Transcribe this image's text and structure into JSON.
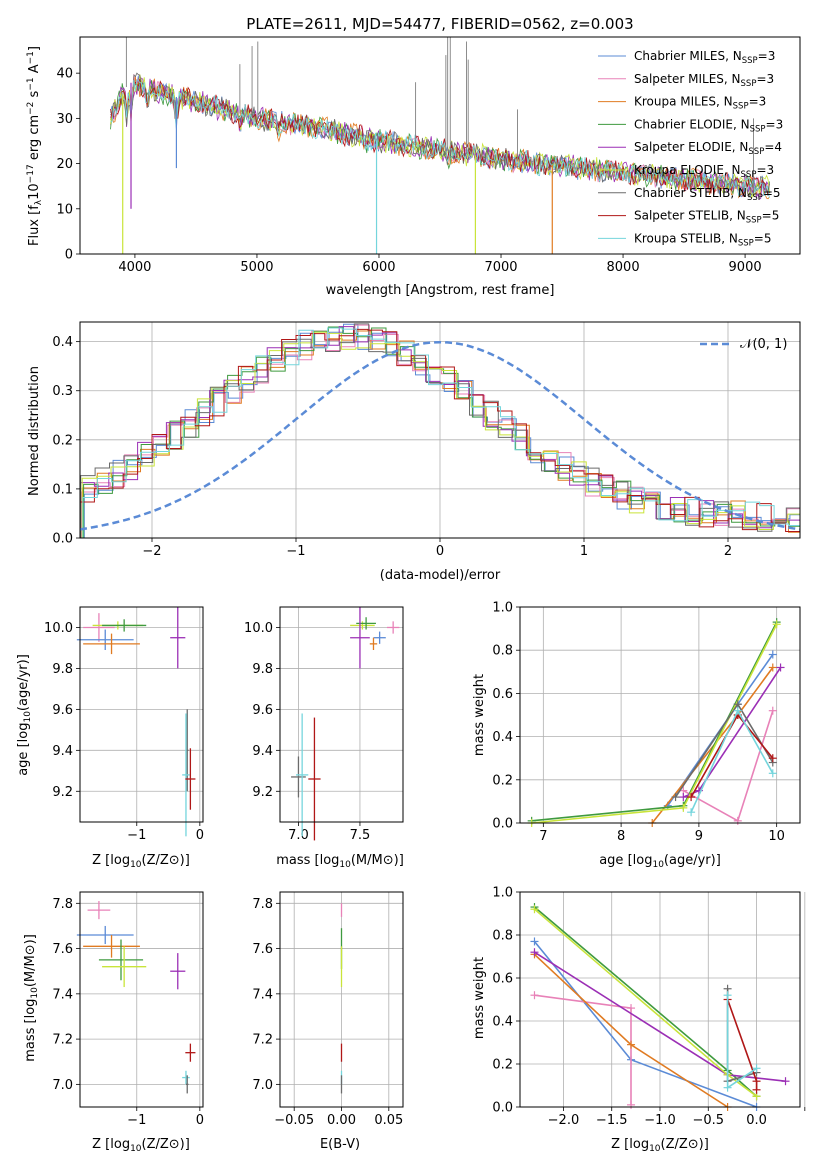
{
  "colors": {
    "Chabrier MILES": "#5b8bd6",
    "Salpeter MILES": "#e882b8",
    "Kroupa MILES": "#e07b22",
    "Chabrier ELODIE": "#3f9a3f",
    "Salpeter ELODIE": "#9b2fb5",
    "Kroupa ELODIE": "#c9e43a",
    "Chabrier STELIB": "#6b6b6b",
    "Salpeter STELIB": "#b01717",
    "Kroupa STELIB": "#74d5dc",
    "normal": "#5b8bd6"
  },
  "chart_data": [
    {
      "type": "line",
      "title": "PLATE=2611, MJD=54477, FIBERID=0562, z=0.003",
      "xlabel": "wavelength [Angstrom, rest frame]",
      "ylabel": "Flux [f_λ10^{-17} erg cm^{-2} s^{-1} A^{-1}]",
      "xlim": [
        3550,
        9450
      ],
      "ylim": [
        0,
        48
      ],
      "xticks": [
        "4000",
        "5000",
        "6000",
        "7000",
        "8000",
        "9000"
      ],
      "yticks": [
        "0",
        "10",
        "20",
        "30",
        "40"
      ],
      "legend_position": "top-right",
      "series": [
        {
          "name": "Chabrier MILES",
          "label_main": "Chabrier MILES, N",
          "label_sub": "SSP",
          "label_tail": "=3"
        },
        {
          "name": "Salpeter MILES",
          "label_main": "Salpeter MILES, N",
          "label_sub": "SSP",
          "label_tail": "=3"
        },
        {
          "name": "Kroupa MILES",
          "label_main": "Kroupa MILES, N",
          "label_sub": "SSP",
          "label_tail": "=3"
        },
        {
          "name": "Chabrier ELODIE",
          "label_main": "Chabrier ELODIE, N",
          "label_sub": "SSP",
          "label_tail": "=3"
        },
        {
          "name": "Salpeter ELODIE",
          "label_main": "Salpeter ELODIE, N",
          "label_sub": "SSP",
          "label_tail": "=4"
        },
        {
          "name": "Kroupa ELODIE",
          "label_main": "Kroupa ELODIE, N",
          "label_sub": "SSP",
          "label_tail": "=3"
        },
        {
          "name": "Chabrier STELIB",
          "label_main": "Chabrier STELIB, N",
          "label_sub": "SSP",
          "label_tail": "=5"
        },
        {
          "name": "Salpeter STELIB",
          "label_main": "Salpeter STELIB, N",
          "label_sub": "SSP",
          "label_tail": "=5"
        },
        {
          "name": "Kroupa STELIB",
          "label_main": "Kroupa STELIB, N",
          "label_sub": "SSP",
          "label_tail": "=5"
        }
      ],
      "continuum": {
        "x": [
          3800,
          3950,
          4100,
          4300,
          4600,
          5000,
          5500,
          6000,
          6500,
          7000,
          7500,
          8000,
          8500,
          9000,
          9200
        ],
        "y": [
          30,
          38,
          37,
          35,
          33,
          30,
          28,
          25,
          23,
          21,
          19.5,
          18,
          16.5,
          15,
          14.5
        ]
      },
      "spikes": [
        {
          "x": 3900,
          "y": 0,
          "series": "Kroupa ELODIE"
        },
        {
          "x": 3968,
          "y": 10,
          "series": "Salpeter ELODIE"
        },
        {
          "x": 4340,
          "y": 19,
          "series": "Chabrier MILES"
        },
        {
          "x": 5980,
          "y": 0,
          "series": "Kroupa STELIB"
        },
        {
          "x": 6790,
          "y": 0,
          "series": "Kroupa ELODIE"
        },
        {
          "x": 7420,
          "y": 0,
          "series": "Kroupa MILES"
        }
      ],
      "emission": [
        {
          "x": 3930,
          "y": 48
        },
        {
          "x": 4860,
          "y": 42
        },
        {
          "x": 4960,
          "y": 46
        },
        {
          "x": 5007,
          "y": 47
        },
        {
          "x": 6300,
          "y": 38
        },
        {
          "x": 6548,
          "y": 44
        },
        {
          "x": 6563,
          "y": 48
        },
        {
          "x": 6584,
          "y": 48
        },
        {
          "x": 6717,
          "y": 47
        },
        {
          "x": 6731,
          "y": 43
        },
        {
          "x": 7135,
          "y": 32
        },
        {
          "x": 9069,
          "y": 30
        }
      ]
    },
    {
      "type": "line",
      "xlabel": "(data-model)/error",
      "ylabel": "Normed distribution",
      "xlim": [
        -2.5,
        2.5
      ],
      "ylim": [
        0,
        0.44
      ],
      "xticks": [
        "−2",
        "−1",
        "0",
        "1",
        "2"
      ],
      "yticks": [
        "0.0",
        "0.1",
        "0.2",
        "0.3",
        "0.4"
      ],
      "legend_label": "𝒩(0, 1)",
      "legend_position": "top-right",
      "bin_width": 0.1,
      "bins_start": -2.5,
      "base_values": [
        0.14,
        0.14,
        0.15,
        0.15,
        0.16,
        0.17,
        0.18,
        0.19,
        0.2,
        0.21,
        0.22,
        0.24,
        0.25,
        0.26,
        0.27,
        0.28,
        0.29,
        0.3,
        0.31,
        0.32,
        0.33,
        0.33,
        0.34,
        0.34,
        0.33,
        0.33,
        0.32,
        0.31,
        0.3,
        0.3,
        0.29,
        0.28,
        0.27,
        0.26,
        0.26,
        0.25,
        0.24,
        0.23,
        0.22,
        0.21,
        0.2,
        0.19,
        0.18,
        0.17,
        0.16,
        0.15,
        0.14,
        0.13,
        0.12,
        0.11,
        0.1,
        0.09,
        0.08,
        0.07,
        0.07,
        0.06,
        0.06,
        0.05,
        0.05,
        0.04,
        0.04,
        0.04,
        0.03,
        0.03,
        0.03,
        0.03,
        0.03,
        0.03,
        0.03,
        0.03,
        0.02,
        0.02,
        0.02,
        0.02,
        0.02,
        0.02,
        0.02,
        0.02,
        0.02,
        0.02,
        0.02,
        0.02,
        0.02,
        0.02,
        0.02,
        0.02,
        0.02,
        0.02,
        0.02,
        0.02
      ]
    },
    {
      "type": "scatter",
      "xlabel": "Z [log10(Z/Z⊙)]",
      "xlabel_main": "Z [log",
      "xlabel_sub": "10",
      "xlabel_tail": "(Z/Z⊙)]",
      "ylabel_main": "age  [log",
      "ylabel_sub": "10",
      "ylabel_tail": "(age/yr)]",
      "xlim": [
        -1.9,
        0.05
      ],
      "ylim": [
        9.05,
        10.1
      ],
      "xticks": [
        -1,
        0
      ],
      "yticks": [
        9.2,
        9.4,
        9.6,
        9.8,
        10.0
      ],
      "points": [
        {
          "series": "Salpeter MILES",
          "x": -1.6,
          "y": 10.0,
          "xerr": 0.25,
          "yerr": 0.07
        },
        {
          "series": "Kroupa ELODIE",
          "x": -1.3,
          "y": 10.01,
          "xerr": 0.4,
          "yerr": 0.02
        },
        {
          "series": "Chabrier ELODIE",
          "x": -1.2,
          "y": 10.01,
          "xerr": 0.35,
          "yerr": 0.03
        },
        {
          "series": "Chabrier MILES",
          "x": -1.5,
          "y": 9.94,
          "xerr": 0.45,
          "yerr": 0.05
        },
        {
          "series": "Kroupa MILES",
          "x": -1.4,
          "y": 9.92,
          "xerr": 0.45,
          "yerr": 0.05
        },
        {
          "series": "Salpeter ELODIE",
          "x": -0.35,
          "y": 9.95,
          "xerr": 0.12,
          "yerr": 0.15
        },
        {
          "series": "Chabrier STELIB",
          "x": -0.2,
          "y": 9.4,
          "xerr": 0.02,
          "yerr": 0.2
        },
        {
          "series": "Kroupa STELIB",
          "x": -0.22,
          "y": 9.28,
          "xerr": 0.06,
          "yerr": 0.3
        },
        {
          "series": "Salpeter STELIB",
          "x": -0.15,
          "y": 9.26,
          "xerr": 0.08,
          "yerr": 0.15
        }
      ]
    },
    {
      "type": "scatter",
      "xlabel_main": "mass [log",
      "xlabel_sub": "10",
      "xlabel_tail": "(M/M⊙)]",
      "xlim": [
        6.85,
        7.85
      ],
      "ylim": [
        9.05,
        10.1
      ],
      "xticks": [
        7.0,
        7.5
      ],
      "yticks": [
        9.2,
        9.4,
        9.6,
        9.8,
        10.0
      ],
      "points": [
        {
          "series": "Salpeter MILES",
          "x": 7.77,
          "y": 10.0,
          "xerr": 0.05,
          "yerr": 0.03
        },
        {
          "series": "Kroupa ELODIE",
          "x": 7.52,
          "y": 10.01,
          "xerr": 0.1,
          "yerr": 0.02
        },
        {
          "series": "Chabrier ELODIE",
          "x": 7.55,
          "y": 10.02,
          "xerr": 0.08,
          "yerr": 0.03
        },
        {
          "series": "Chabrier MILES",
          "x": 7.66,
          "y": 9.95,
          "xerr": 0.05,
          "yerr": 0.03
        },
        {
          "series": "Kroupa MILES",
          "x": 7.61,
          "y": 9.92,
          "xerr": 0.03,
          "yerr": 0.03
        },
        {
          "series": "Salpeter ELODIE",
          "x": 7.5,
          "y": 9.95,
          "xerr": 0.08,
          "yerr": 0.15
        },
        {
          "series": "Chabrier STELIB",
          "x": 7.0,
          "y": 9.27,
          "xerr": 0.06,
          "yerr": 0.1
        },
        {
          "series": "Kroupa STELIB",
          "x": 7.03,
          "y": 9.28,
          "xerr": 0.05,
          "yerr": 0.3
        },
        {
          "series": "Salpeter STELIB",
          "x": 7.13,
          "y": 9.26,
          "xerr": 0.05,
          "yerr": 0.3
        }
      ]
    },
    {
      "type": "line",
      "xlabel_main": "age  [log",
      "xlabel_sub": "10",
      "xlabel_tail": "(age/yr)]",
      "ylabel": "mass weight",
      "xlim": [
        6.7,
        10.3
      ],
      "ylim": [
        0,
        1.0
      ],
      "xticks": [
        7,
        8,
        9,
        10
      ],
      "yticks": [
        0.0,
        0.2,
        0.4,
        0.6,
        0.8,
        1.0
      ],
      "series": [
        {
          "name": "Chabrier MILES",
          "x": [
            8.6,
            9.5,
            9.95
          ],
          "y": [
            0.08,
            0.55,
            0.78
          ]
        },
        {
          "name": "Salpeter MILES",
          "x": [
            8.8,
            9.5,
            9.95
          ],
          "y": [
            0.15,
            0.01,
            0.52
          ]
        },
        {
          "name": "Kroupa MILES",
          "x": [
            8.4,
            9.5,
            9.95
          ],
          "y": [
            0.0,
            0.5,
            0.72
          ]
        },
        {
          "name": "Chabrier ELODIE",
          "x": [
            6.85,
            8.8,
            10.0
          ],
          "y": [
            0.01,
            0.08,
            0.93
          ]
        },
        {
          "name": "Salpeter ELODIE",
          "x": [
            8.8,
            9.0,
            10.05
          ],
          "y": [
            0.12,
            0.15,
            0.72
          ]
        },
        {
          "name": "Kroupa ELODIE",
          "x": [
            6.85,
            8.8,
            10.0
          ],
          "y": [
            0.0,
            0.07,
            0.92
          ]
        },
        {
          "name": "Chabrier STELIB",
          "x": [
            8.7,
            9.5,
            9.95
          ],
          "y": [
            0.12,
            0.55,
            0.28
          ]
        },
        {
          "name": "Salpeter STELIB",
          "x": [
            8.9,
            9.5,
            9.95
          ],
          "y": [
            0.12,
            0.5,
            0.3
          ]
        },
        {
          "name": "Kroupa STELIB",
          "x": [
            8.9,
            9.5,
            9.95
          ],
          "y": [
            0.05,
            0.52,
            0.23
          ]
        }
      ]
    },
    {
      "type": "scatter",
      "xlabel_main": "Z [log",
      "xlabel_sub": "10",
      "xlabel_tail": "(Z/Z⊙)]",
      "ylabel_main": "mass [log",
      "ylabel_sub": "10",
      "ylabel_tail": "(M/M⊙)]",
      "xlim": [
        -1.9,
        0.05
      ],
      "ylim": [
        6.9,
        7.85
      ],
      "xticks": [
        -1,
        0
      ],
      "yticks": [
        7.0,
        7.2,
        7.4,
        7.6,
        7.8
      ],
      "points": [
        {
          "series": "Salpeter MILES",
          "x": -1.6,
          "y": 7.77,
          "xerr": 0.18,
          "yerr": 0.04
        },
        {
          "series": "Chabrier MILES",
          "x": -1.5,
          "y": 7.66,
          "xerr": 0.45,
          "yerr": 0.04
        },
        {
          "series": "Kroupa MILES",
          "x": -1.4,
          "y": 7.61,
          "xerr": 0.45,
          "yerr": 0.05
        },
        {
          "series": "Chabrier ELODIE",
          "x": -1.25,
          "y": 7.55,
          "xerr": 0.35,
          "yerr": 0.09
        },
        {
          "series": "Kroupa ELODIE",
          "x": -1.2,
          "y": 7.52,
          "xerr": 0.35,
          "yerr": 0.09
        },
        {
          "series": "Salpeter ELODIE",
          "x": -0.35,
          "y": 7.5,
          "xerr": 0.12,
          "yerr": 0.08
        },
        {
          "series": "Salpeter STELIB",
          "x": -0.15,
          "y": 7.14,
          "xerr": 0.08,
          "yerr": 0.04
        },
        {
          "series": "Kroupa STELIB",
          "x": -0.22,
          "y": 7.03,
          "xerr": 0.06,
          "yerr": 0.03
        },
        {
          "series": "Chabrier STELIB",
          "x": -0.2,
          "y": 7.0,
          "xerr": 0.02,
          "yerr": 0.04
        }
      ]
    },
    {
      "type": "scatter",
      "xlabel": "E(B-V)",
      "xlim": [
        -0.065,
        0.065
      ],
      "ylim": [
        6.9,
        7.85
      ],
      "xticks": [
        -0.05,
        0.0,
        0.05
      ],
      "xtick_labels": [
        "−0.05",
        "0.00",
        "0.05"
      ],
      "yticks": [
        7.0,
        7.2,
        7.4,
        7.6,
        7.8
      ],
      "points": [
        {
          "series": "Salpeter MILES",
          "x": 0,
          "y": 7.77,
          "xerr": 0,
          "yerr": 0.03
        },
        {
          "series": "Chabrier ELODIE",
          "x": 0,
          "y": 7.6,
          "xerr": 0,
          "yerr": 0.09
        },
        {
          "series": "Kroupa ELODIE",
          "x": 0,
          "y": 7.52,
          "xerr": 0,
          "yerr": 0.09
        },
        {
          "series": "Salpeter STELIB",
          "x": 0,
          "y": 7.14,
          "xerr": 0,
          "yerr": 0.04
        },
        {
          "series": "Kroupa STELIB",
          "x": 0,
          "y": 7.03,
          "xerr": 0,
          "yerr": 0.03
        },
        {
          "series": "Chabrier STELIB",
          "x": 0,
          "y": 7.0,
          "xerr": 0,
          "yerr": 0.04
        }
      ]
    },
    {
      "type": "line",
      "xlabel_main": "Z [log",
      "xlabel_sub": "10",
      "xlabel_tail": "(Z/Z⊙)]",
      "ylabel": "mass weight",
      "xlim": [
        -2.45,
        0.45
      ],
      "ylim": [
        0,
        1.0
      ],
      "xticks": [
        -2.0,
        -1.5,
        -1.0,
        -0.5,
        0.0,
        0.5
      ],
      "xtick_labels": [
        "−2.0",
        "−1.5",
        "−1.0",
        "−0.5",
        "0.0",
        ""
      ],
      "yticks": [
        0.0,
        0.2,
        0.4,
        0.6,
        0.8,
        1.0
      ],
      "series": [
        {
          "name": "Chabrier MILES",
          "x": [
            -2.3,
            -1.3,
            0.0
          ],
          "y": [
            0.77,
            0.22,
            0.0
          ]
        },
        {
          "name": "Salpeter MILES",
          "x": [
            -2.3,
            -1.3,
            -1.3
          ],
          "y": [
            0.52,
            0.46,
            0.01
          ]
        },
        {
          "name": "Kroupa MILES",
          "x": [
            -2.3,
            -1.3,
            -0.3
          ],
          "y": [
            0.71,
            0.29,
            0.0
          ]
        },
        {
          "name": "Chabrier ELODIE",
          "x": [
            -2.3,
            -0.3,
            0.0
          ],
          "y": [
            0.93,
            0.17,
            0.05
          ]
        },
        {
          "name": "Salpeter ELODIE",
          "x": [
            -2.3,
            -0.3,
            0.3
          ],
          "y": [
            0.72,
            0.15,
            0.12
          ]
        },
        {
          "name": "Kroupa ELODIE",
          "x": [
            -2.3,
            -0.3,
            0.0
          ],
          "y": [
            0.92,
            0.15,
            0.05
          ]
        },
        {
          "name": "Chabrier STELIB",
          "x": [
            -0.3,
            -0.3,
            0.0
          ],
          "y": [
            0.55,
            0.12,
            0.16
          ]
        },
        {
          "name": "Salpeter STELIB",
          "x": [
            -0.3,
            0.0,
            0.0
          ],
          "y": [
            0.5,
            0.12,
            0.08
          ]
        },
        {
          "name": "Kroupa STELIB",
          "x": [
            -0.3,
            -0.3,
            0.0
          ],
          "y": [
            0.52,
            0.09,
            0.18
          ]
        }
      ]
    }
  ]
}
